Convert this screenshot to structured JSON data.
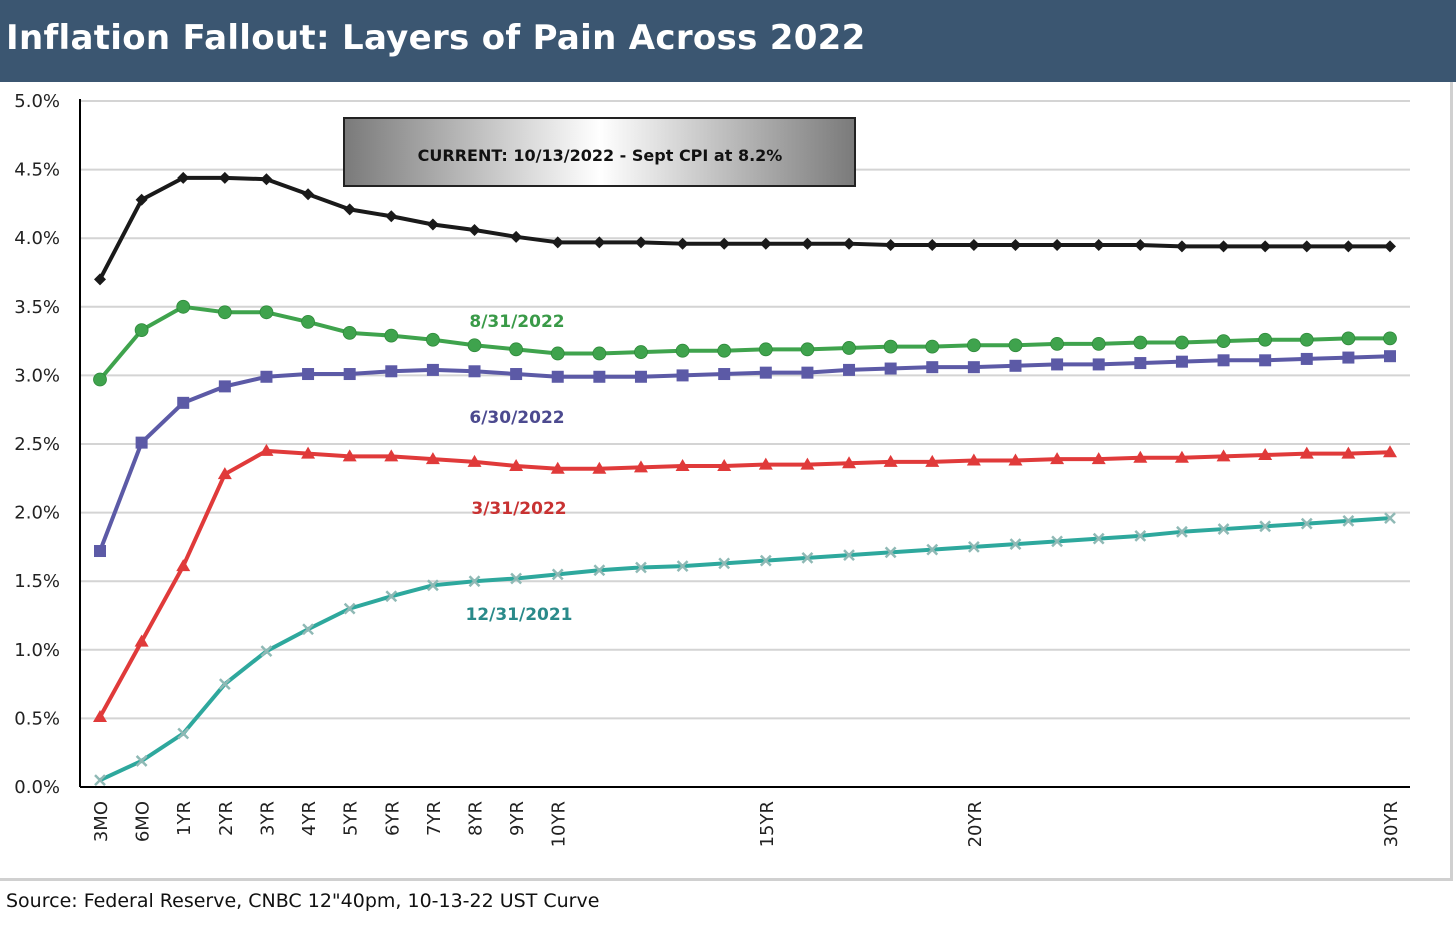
{
  "header": {
    "title": "Inflation Fallout: Layers of Pain Across 2022"
  },
  "footer": {
    "source": "Source: Federal Reserve, CNBC 12\"40pm, 10-13-22 UST Curve"
  },
  "chart_data": {
    "type": "line",
    "title": "Inflation Fallout: Layers of Pain Across 2022",
    "annotation": "CURRENT: 10/13/2022  - Sept CPI at 8.2%",
    "ylim": [
      0,
      5
    ],
    "y_ticks": [
      "0.0%",
      "0.5%",
      "1.0%",
      "1.5%",
      "2.0%",
      "2.5%",
      "3.0%",
      "3.5%",
      "4.0%",
      "4.5%",
      "5.0%"
    ],
    "y_tick_values": [
      0,
      0.5,
      1.0,
      1.5,
      2.0,
      2.5,
      3.0,
      3.5,
      4.0,
      4.5,
      5.0
    ],
    "x_tick_labels": [
      "3MO",
      "6MO",
      "1YR",
      "2YR",
      "3YR",
      "4YR",
      "5YR",
      "6YR",
      "7YR",
      "8YR",
      "9YR",
      "10YR",
      "15YR",
      "20YR",
      "30YR"
    ],
    "x_tick_positions": [
      0,
      1,
      2,
      3,
      4,
      5,
      6,
      7,
      8,
      9,
      10,
      11,
      16,
      21,
      31
    ],
    "x_count": 32,
    "grid": true,
    "series": [
      {
        "name": "CURRENT: 10/13/2022",
        "color": "#1a1a1a",
        "marker": "diamond",
        "values": [
          3.7,
          4.28,
          4.44,
          4.44,
          4.43,
          4.32,
          4.21,
          4.16,
          4.1,
          4.06,
          4.01,
          3.97,
          3.97,
          3.97,
          3.96,
          3.96,
          3.96,
          3.96,
          3.96,
          3.95,
          3.95,
          3.95,
          3.95,
          3.95,
          3.95,
          3.95,
          3.94,
          3.94,
          3.94,
          3.94,
          3.94,
          3.94
        ]
      },
      {
        "name": "8/31/2022",
        "color": "#3fa34d",
        "marker": "circle",
        "values": [
          2.97,
          3.33,
          3.5,
          3.46,
          3.46,
          3.39,
          3.31,
          3.29,
          3.26,
          3.22,
          3.19,
          3.16,
          3.16,
          3.17,
          3.18,
          3.18,
          3.19,
          3.19,
          3.2,
          3.21,
          3.21,
          3.22,
          3.22,
          3.23,
          3.23,
          3.24,
          3.24,
          3.25,
          3.26,
          3.26,
          3.27,
          3.27
        ]
      },
      {
        "name": "6/30/2022",
        "color": "#5c5aa6",
        "marker": "square",
        "values": [
          1.72,
          2.51,
          2.8,
          2.92,
          2.99,
          3.01,
          3.01,
          3.03,
          3.04,
          3.03,
          3.01,
          2.99,
          2.99,
          2.99,
          3.0,
          3.01,
          3.02,
          3.02,
          3.04,
          3.05,
          3.06,
          3.06,
          3.07,
          3.08,
          3.08,
          3.09,
          3.1,
          3.11,
          3.11,
          3.12,
          3.13,
          3.14
        ]
      },
      {
        "name": "3/31/2022",
        "color": "#e03a3a",
        "marker": "triangle",
        "values": [
          0.51,
          1.06,
          1.61,
          2.28,
          2.45,
          2.43,
          2.41,
          2.41,
          2.39,
          2.37,
          2.34,
          2.32,
          2.32,
          2.33,
          2.34,
          2.34,
          2.35,
          2.35,
          2.36,
          2.37,
          2.37,
          2.38,
          2.38,
          2.39,
          2.39,
          2.4,
          2.4,
          2.41,
          2.42,
          2.43,
          2.43,
          2.44
        ]
      },
      {
        "name": "12/31/2021",
        "color": "#2ea89d",
        "marker": "x",
        "values": [
          0.05,
          0.19,
          0.39,
          0.75,
          0.99,
          1.15,
          1.3,
          1.39,
          1.47,
          1.5,
          1.52,
          1.55,
          1.58,
          1.6,
          1.61,
          1.63,
          1.65,
          1.67,
          1.69,
          1.71,
          1.73,
          1.75,
          1.77,
          1.79,
          1.81,
          1.83,
          1.86,
          1.88,
          1.9,
          1.92,
          1.94,
          1.96
        ]
      }
    ],
    "series_labels": [
      "8/31/2022",
      "6/30/2022",
      "3/31/2022",
      "12/31/2021"
    ]
  }
}
